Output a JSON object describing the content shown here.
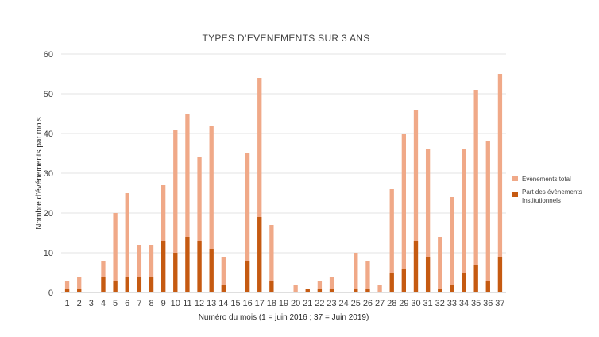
{
  "chart_data": {
    "type": "bar",
    "title": "TYPES D’EVENEMENTS SUR 3 ANS",
    "xlabel": "Numéro du mois (1 = juin 2016 ; 37 = Juin 2019)",
    "ylabel": "Nombre d'événements par mois",
    "ylim": [
      0,
      60
    ],
    "yticks": [
      "0",
      "10",
      "20",
      "30",
      "40",
      "50",
      "60"
    ],
    "grid": true,
    "legend_position": "right",
    "categories": [
      "1",
      "2",
      "3",
      "4",
      "5",
      "6",
      "7",
      "8",
      "9",
      "10",
      "11",
      "12",
      "13",
      "14",
      "15",
      "16",
      "17",
      "18",
      "19",
      "20",
      "21",
      "22",
      "23",
      "24",
      "25",
      "26",
      "27",
      "28",
      "29",
      "30",
      "31",
      "32",
      "33",
      "34",
      "35",
      "36",
      "37"
    ],
    "series": [
      {
        "name": "Evènements total",
        "color": "#f0a988",
        "values": [
          3,
          4,
          0,
          8,
          20,
          25,
          12,
          12,
          27,
          41,
          45,
          34,
          42,
          9,
          0,
          35,
          54,
          17,
          0,
          2,
          1,
          3,
          4,
          0,
          10,
          8,
          2,
          26,
          40,
          46,
          36,
          14,
          24,
          36,
          51,
          38,
          55
        ]
      },
      {
        "name": "Part des évènements Institutionnels",
        "color": "#c55a11",
        "values": [
          1,
          1,
          0,
          4,
          3,
          4,
          4,
          4,
          13,
          10,
          14,
          13,
          11,
          2,
          0,
          8,
          19,
          3,
          0,
          0,
          1,
          1,
          1,
          0,
          1,
          1,
          0,
          5,
          6,
          13,
          9,
          1,
          2,
          5,
          7,
          3,
          9
        ]
      }
    ],
    "legend": {
      "total": "Evènements total",
      "inst_line1": "Part des évènements",
      "inst_line2": "Institutionnels"
    }
  }
}
